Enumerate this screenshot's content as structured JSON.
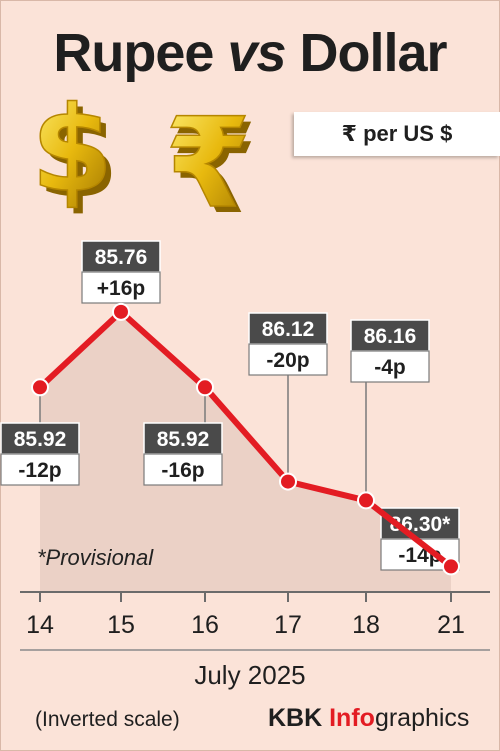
{
  "header": {
    "title_part1": "Rupee ",
    "title_vs": "vs",
    "title_part2": " Dollar",
    "unit": "₹ per US $"
  },
  "chart_data": {
    "type": "line",
    "title": "Rupee vs Dollar",
    "ylabel": "₹ per US $",
    "inverted_y": true,
    "ylim": [
      85.65,
      86.35
    ],
    "categories": [
      "14",
      "15",
      "16",
      "17",
      "18",
      "21"
    ],
    "series": [
      {
        "values": [
          85.92,
          85.76,
          85.92,
          86.12,
          86.16,
          86.3
        ],
        "labels": [
          "85.92",
          "85.76",
          "85.92",
          "86.12",
          "86.16",
          "86.30*"
        ],
        "changes": [
          "-12p",
          "+16p",
          "-16p",
          "-20p",
          "-4p",
          "-14p"
        ]
      }
    ],
    "xlabel": "July 2025",
    "footnote": "*Provisional",
    "scale_note": "(Inverted scale)",
    "line_color": "#e31c23",
    "label_bg": "#4a4a4a",
    "fill_color": "#e8cec3"
  },
  "footer": {
    "credit_brand": "KBK ",
    "credit_info": "Info",
    "credit_rest": "graphics"
  },
  "icons": [
    "dollar-sign-3d-icon",
    "rupee-sign-3d-icon"
  ]
}
